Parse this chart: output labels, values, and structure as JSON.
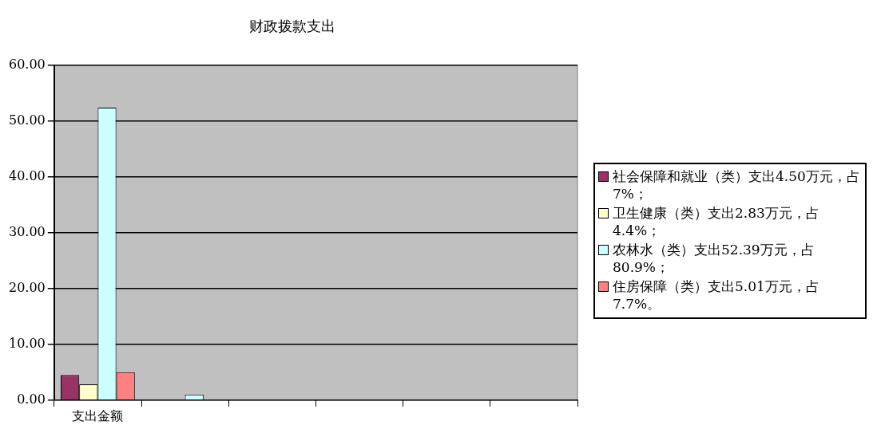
{
  "chart_data": {
    "type": "bar",
    "title": "财政拨款支出",
    "categories": [
      "支出金额",
      null,
      null,
      null,
      null,
      null
    ],
    "series": [
      {
        "name": "社会保障和就业（类）支出4.50万元，占7%；",
        "color": "#993366",
        "values": [
          4.5,
          null,
          null,
          null,
          null,
          null
        ]
      },
      {
        "name": "卫生健康（类）支出2.83万元，占4.4%；",
        "color": "#ffffcc",
        "values": [
          2.83,
          null,
          null,
          null,
          null,
          null
        ]
      },
      {
        "name": "农林水（类）支出52.39万元，占80.9%；",
        "color": "#ccffff",
        "values": [
          52.39,
          1.0,
          null,
          null,
          null,
          null
        ]
      },
      {
        "name": "住房保障（类）支出5.01万元，占7.7%。",
        "color": "#ff8080",
        "values": [
          5.01,
          null,
          null,
          null,
          null,
          null
        ]
      }
    ],
    "ylim": [
      0,
      60
    ],
    "yticks": [
      {
        "value": 0,
        "label": "0.00"
      },
      {
        "value": 10,
        "label": "10.00"
      },
      {
        "value": 20,
        "label": "20.00"
      },
      {
        "value": 30,
        "label": "30.00"
      },
      {
        "value": 40,
        "label": "40.00"
      },
      {
        "value": 50,
        "label": "50.00"
      },
      {
        "value": 60,
        "label": "60.00"
      }
    ],
    "grid": "y",
    "legend": "right"
  }
}
